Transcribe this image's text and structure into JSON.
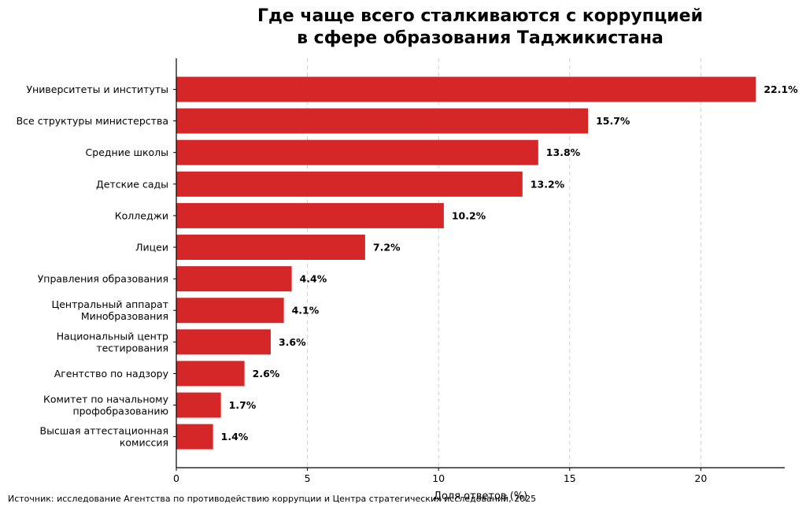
{
  "chart_data": {
    "type": "bar",
    "orientation": "horizontal",
    "title": [
      "Где чаще всего сталкиваются с коррупцией",
      "в сфере образования Таджикистана"
    ],
    "xlabel": "Доля ответов (%)",
    "ylabel": "",
    "xlim": [
      0,
      23.2
    ],
    "xticks": [
      "0",
      "5",
      "10",
      "15",
      "20"
    ],
    "grid": "vertical dashed",
    "bar_color": "#d62728",
    "categories": [
      [
        "Университеты и институты"
      ],
      [
        "Все структуры министерства"
      ],
      [
        "Средние школы"
      ],
      [
        "Детские сады"
      ],
      [
        "Колледжи"
      ],
      [
        "Лицеи"
      ],
      [
        "Управления образования"
      ],
      [
        "Центральный аппарат",
        "Минобразования"
      ],
      [
        "Национальный центр",
        "тестирования"
      ],
      [
        "Агентство по надзору"
      ],
      [
        "Комитет по начальному",
        "профобразованию"
      ],
      [
        "Высшая аттестационная",
        "комиссия"
      ]
    ],
    "values": [
      22.1,
      15.7,
      13.8,
      13.2,
      10.2,
      7.2,
      4.4,
      4.1,
      3.6,
      2.6,
      1.7,
      1.4
    ],
    "data_labels": [
      "22.1%",
      "15.7%",
      "13.8%",
      "13.2%",
      "10.2%",
      "7.2%",
      "4.4%",
      "4.1%",
      "3.6%",
      "2.6%",
      "1.7%",
      "1.4%"
    ]
  },
  "source_note": "Источник: исследование Агентства по противодействию коррупции и Центра стратегических исследований, 2025"
}
